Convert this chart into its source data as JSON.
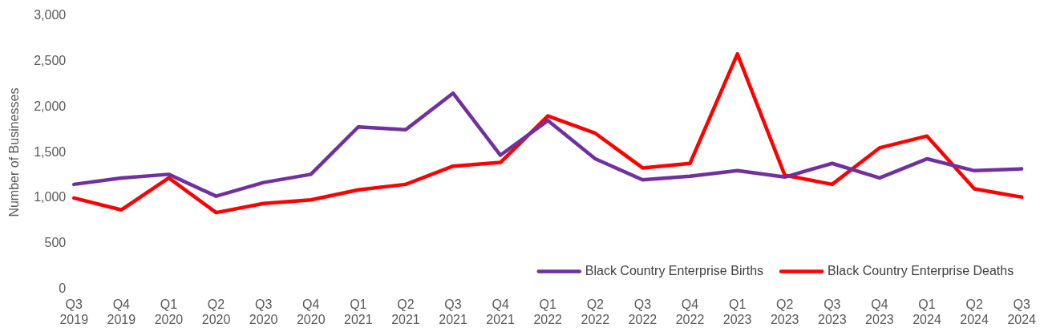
{
  "chart_data": {
    "type": "line",
    "ylabel": "Number of Businesses",
    "categories": [
      "Q3 2019",
      "Q4 2019",
      "Q1 2020",
      "Q2 2020",
      "Q3 2020",
      "Q4 2020",
      "Q1 2021",
      "Q2 2021",
      "Q3 2021",
      "Q4 2021",
      "Q1 2022",
      "Q2 2022",
      "Q3 2022",
      "Q4 2022",
      "Q1 2023",
      "Q2 2023",
      "Q3 2023",
      "Q4 2023",
      "Q1 2024",
      "Q2 2024",
      "Q3 2024"
    ],
    "series": [
      {
        "name": "Black Country Enterprise Births",
        "color": "#7030a0",
        "values": [
          1150,
          1220,
          1260,
          1020,
          1170,
          1260,
          1780,
          1750,
          2150,
          1470,
          1850,
          1430,
          1200,
          1240,
          1300,
          1230,
          1380,
          1220,
          1430,
          1300,
          1320
        ]
      },
      {
        "name": "Black Country Enterprise Deaths",
        "color": "#ff0000",
        "values": [
          1000,
          870,
          1220,
          840,
          940,
          980,
          1090,
          1150,
          1350,
          1390,
          1900,
          1710,
          1330,
          1380,
          2580,
          1250,
          1150,
          1550,
          1680,
          1100,
          1010
        ]
      }
    ],
    "ylim": [
      0,
      3000
    ],
    "yticks": [
      0,
      500,
      {
        "value": 1000,
        "label": "1,000"
      },
      {
        "value": 1500,
        "label": "1,500"
      },
      {
        "value": 2000,
        "label": "2,000"
      },
      {
        "value": 2500,
        "label": "2,500"
      },
      {
        "value": 3000,
        "label": "3,000"
      }
    ],
    "grid": false,
    "legend": "bottom right",
    "marker": "none",
    "line_style": "solid"
  }
}
